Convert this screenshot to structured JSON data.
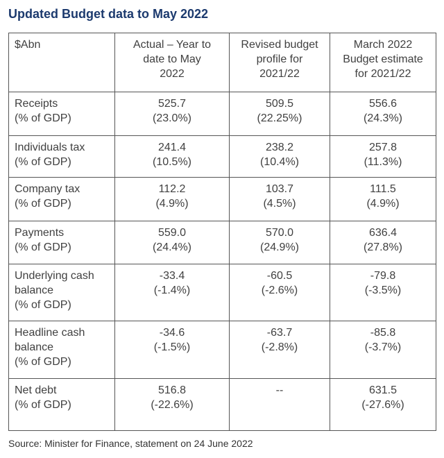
{
  "title": "Updated Budget data to May 2022",
  "table": {
    "header": [
      [
        "$Abn"
      ],
      [
        "Actual – Year to",
        "date to May",
        "2022"
      ],
      [
        "Revised budget",
        "profile for",
        "2021/22"
      ],
      [
        "March 2022",
        "Budget estimate",
        "for 2021/22"
      ]
    ],
    "rows": [
      [
        [
          "Receipts",
          "(% of GDP)"
        ],
        [
          "525.7",
          "(23.0%)"
        ],
        [
          "509.5",
          "(22.25%)"
        ],
        [
          "556.6",
          "(24.3%)"
        ]
      ],
      [
        [
          "Individuals tax",
          "(% of GDP)"
        ],
        [
          "241.4",
          "(10.5%)"
        ],
        [
          "238.2",
          "(10.4%)"
        ],
        [
          "257.8",
          "(11.3%)"
        ]
      ],
      [
        [
          "Company tax",
          "(% of GDP)"
        ],
        [
          "112.2",
          "(4.9%)"
        ],
        [
          "103.7",
          "(4.5%)"
        ],
        [
          "111.5",
          "(4.9%)"
        ]
      ],
      [
        [
          "Payments",
          "(% of GDP)"
        ],
        [
          "559.0",
          "(24.4%)"
        ],
        [
          "570.0",
          "(24.9%)"
        ],
        [
          "636.4",
          "(27.8%)"
        ]
      ],
      [
        [
          "Underlying cash",
          "balance",
          "(% of GDP)"
        ],
        [
          "-33.4",
          "(-1.4%)"
        ],
        [
          "-60.5",
          "(-2.6%)"
        ],
        [
          "-79.8",
          "(-3.5%)"
        ]
      ],
      [
        [
          "Headline cash",
          "balance",
          "(% of GDP)"
        ],
        [
          "-34.6",
          "(-1.5%)"
        ],
        [
          "-63.7",
          "(-2.8%)"
        ],
        [
          "-85.8",
          "(-3.7%)"
        ]
      ],
      [
        [
          "Net debt",
          "(% of GDP)"
        ],
        [
          "516.8",
          "(-22.6%)"
        ],
        [
          "--"
        ],
        [
          "631.5",
          "(-27.6%)"
        ]
      ]
    ]
  },
  "source": "Source:  Minister for Finance, statement on 24 June 2022"
}
